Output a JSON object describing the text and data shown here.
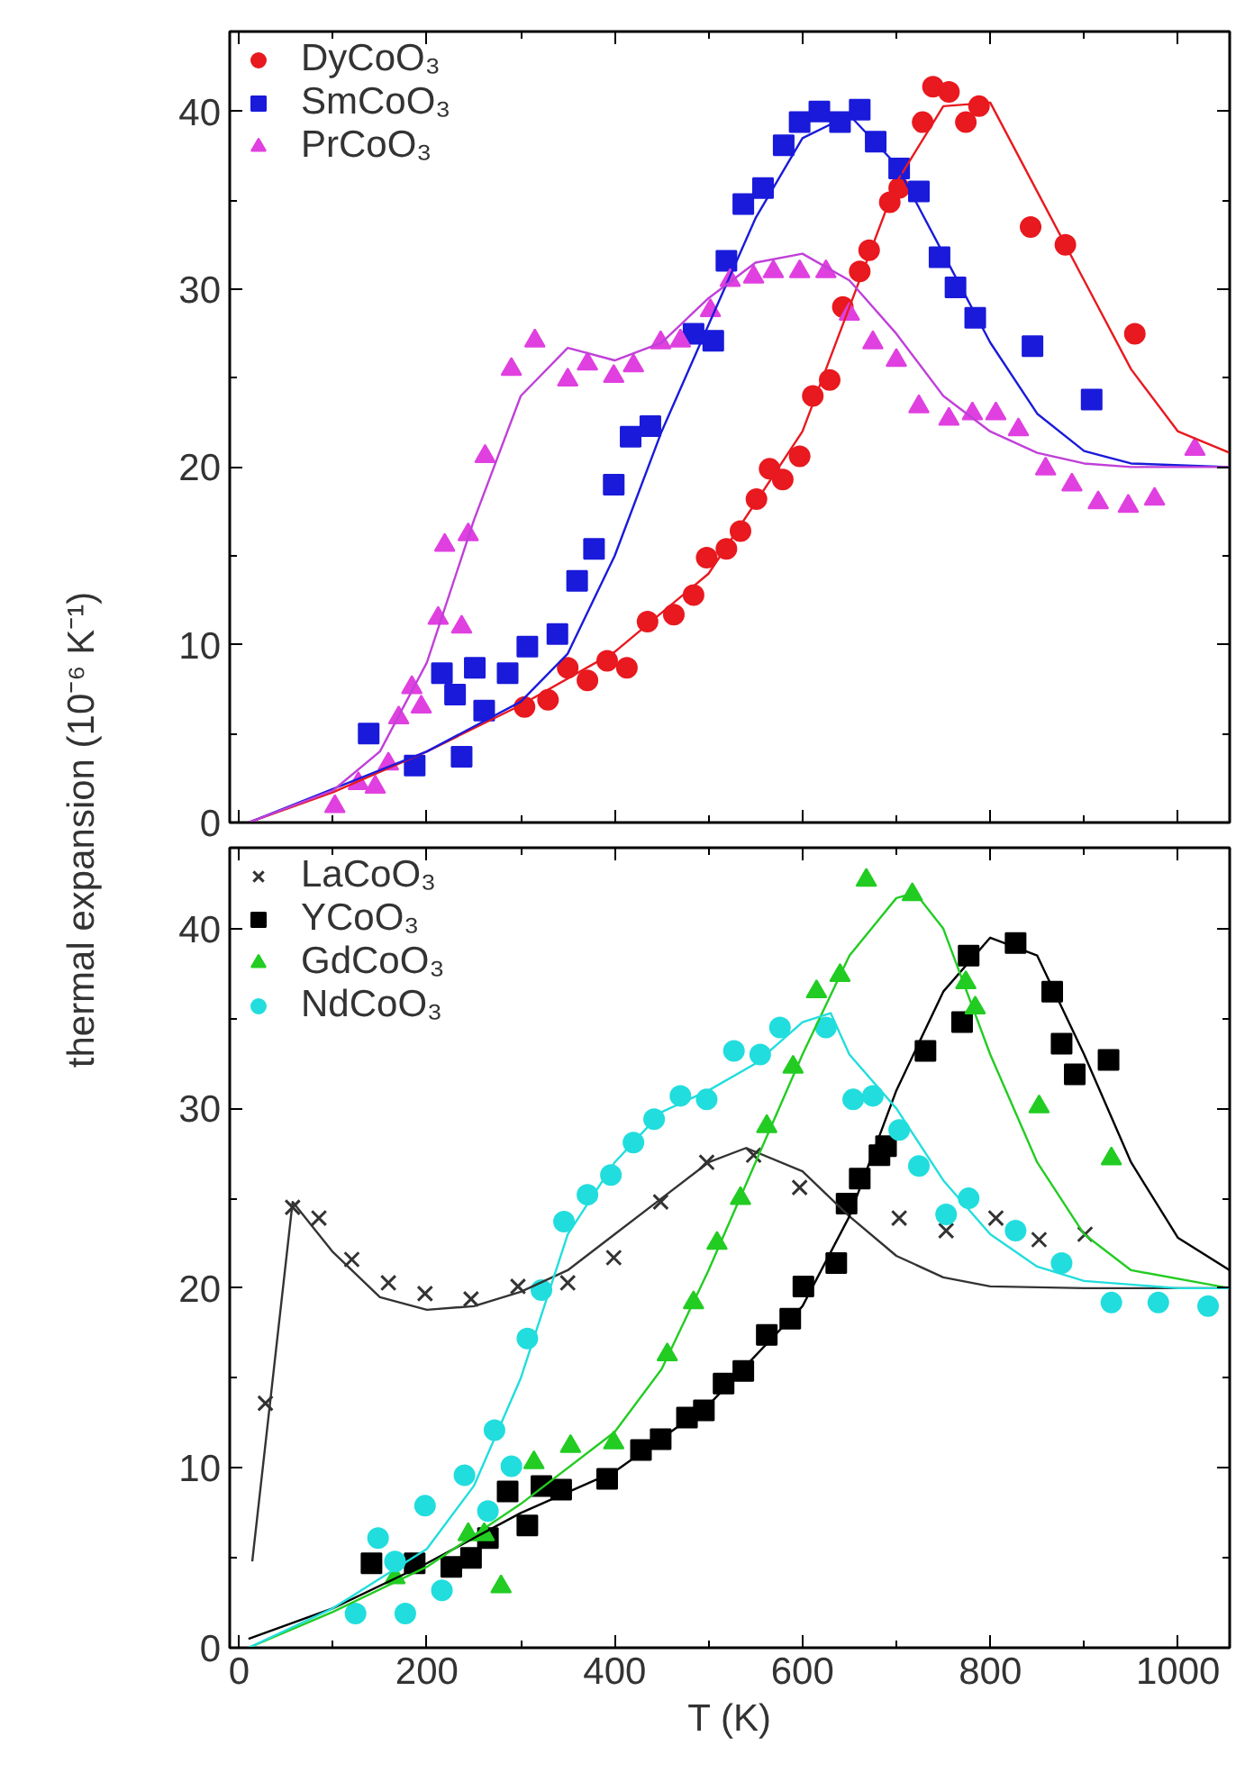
{
  "chart_data": [
    {
      "type": "scatter",
      "ylabel": "thermal expansion (10⁻⁶ K⁻¹)",
      "xlim": [
        -10,
        1055
      ],
      "ylim": [
        0,
        44.5
      ],
      "xticks": [
        0,
        200,
        400,
        600,
        800,
        1000
      ],
      "yticks": [
        0,
        10,
        20,
        30,
        40
      ],
      "tick_labels": "y",
      "grid": false,
      "legend": "top left",
      "series": [
        {
          "name": "DyCoO₃",
          "type": "scatter",
          "marker": "circle",
          "color": "#e8191f",
          "x": [
            304,
            329,
            350,
            371,
            392,
            413,
            435,
            463,
            484,
            498,
            519,
            534,
            551,
            565,
            579,
            597,
            611,
            629,
            643,
            661,
            671,
            693,
            703,
            728,
            739,
            756,
            774,
            788,
            843,
            880,
            954
          ],
          "values": [
            6.5,
            6.9,
            8.7,
            8.0,
            9.1,
            8.7,
            11.3,
            11.7,
            12.8,
            14.9,
            15.4,
            16.4,
            18.2,
            19.9,
            19.3,
            20.6,
            24.0,
            24.9,
            29.0,
            31.0,
            32.2,
            34.9,
            35.7,
            39.4,
            41.4,
            41.1,
            39.4,
            40.3,
            33.5,
            32.5,
            27.5
          ]
        },
        {
          "name": "SmCoO₃",
          "type": "scatter",
          "marker": "square",
          "color": "#1a1adb",
          "x": [
            138,
            187,
            237,
            216,
            251,
            230,
            261,
            286,
            307,
            339,
            360,
            378,
            399,
            417,
            438,
            484,
            505,
            519,
            537,
            558,
            580,
            597,
            618,
            640,
            661,
            678,
            703,
            724,
            746,
            763,
            784,
            845,
            908
          ],
          "values": [
            5.0,
            3.2,
            3.7,
            8.4,
            8.7,
            7.2,
            6.3,
            8.4,
            9.9,
            10.6,
            13.6,
            15.4,
            19.0,
            21.7,
            22.3,
            27.5,
            27.1,
            31.6,
            34.8,
            35.7,
            38.1,
            39.4,
            40.0,
            39.4,
            40.1,
            38.3,
            36.8,
            35.5,
            31.8,
            30.1,
            28.4,
            26.8,
            23.8
          ]
        },
        {
          "name": "PrCoO₃",
          "type": "scatter",
          "marker": "triangle",
          "color": "#e040e0",
          "x": [
            102,
            127,
            145,
            159,
            170,
            184,
            194,
            212,
            237,
            219,
            244,
            262,
            290,
            315,
            350,
            371,
            399,
            420,
            449,
            470,
            502,
            523,
            548,
            569,
            597,
            625,
            650,
            675,
            700,
            724,
            756,
            781,
            806,
            830,
            859,
            887,
            915,
            947,
            975,
            1018
          ],
          "values": [
            0.9,
            2.2,
            2.0,
            3.3,
            5.9,
            7.6,
            6.5,
            11.5,
            11.0,
            15.6,
            16.2,
            20.6,
            25.5,
            27.1,
            24.9,
            25.8,
            25.1,
            25.7,
            27.0,
            27.1,
            28.8,
            30.5,
            30.7,
            31.0,
            31.0,
            31.0,
            28.6,
            27.0,
            26.0,
            23.4,
            22.7,
            23.0,
            23.0,
            22.1,
            19.9,
            19.0,
            18.0,
            17.8,
            18.2,
            21.0
          ]
        },
        {
          "type": "line",
          "color": "#e8191f",
          "x": [
            10,
            100,
            200,
            300,
            400,
            500,
            600,
            650,
            700,
            750,
            800,
            850,
            900,
            950,
            1000,
            1055
          ],
          "values": [
            0,
            1.7,
            4.0,
            6.6,
            9.6,
            14,
            22,
            29,
            36,
            40.3,
            40.5,
            35.5,
            30.5,
            25.5,
            22,
            20.8
          ]
        },
        {
          "type": "line",
          "color": "#1a1adb",
          "x": [
            10,
            200,
            300,
            350,
            400,
            450,
            500,
            550,
            600,
            650,
            700,
            750,
            800,
            850,
            900,
            950,
            1055
          ],
          "values": [
            0,
            4,
            6.8,
            9.5,
            15,
            22,
            28,
            34,
            38.5,
            39.8,
            37,
            32,
            27,
            23,
            20.9,
            20.2,
            20
          ]
        },
        {
          "type": "line",
          "color": "#c040d8",
          "x": [
            10,
            100,
            150,
            200,
            250,
            300,
            350,
            400,
            450,
            500,
            550,
            600,
            650,
            700,
            750,
            800,
            850,
            900,
            950,
            1055
          ],
          "values": [
            0,
            1.8,
            4,
            9,
            17,
            24,
            26.7,
            26,
            27,
            29.5,
            31.5,
            32,
            30.5,
            27.5,
            24,
            22,
            20.8,
            20.2,
            20,
            20
          ]
        }
      ]
    },
    {
      "type": "scatter",
      "xlabel": "T (K)",
      "xlim": [
        -10,
        1055
      ],
      "ylim": [
        0,
        44.5
      ],
      "xticks": [
        0,
        200,
        400,
        600,
        800,
        1000
      ],
      "yticks": [
        0,
        10,
        20,
        30,
        40
      ],
      "grid": false,
      "legend": "top left",
      "series": [
        {
          "name": "LaCoO₃",
          "type": "scatter",
          "marker": "cross",
          "color": "#333333",
          "x": [
            28,
            57,
            85,
            120,
            159,
            198,
            247,
            297,
            350,
            399,
            449,
            498,
            548,
            597,
            703,
            753,
            806,
            852,
            901
          ],
          "values": [
            13.6,
            24.5,
            23.9,
            21.6,
            20.3,
            19.7,
            19.4,
            20.1,
            20.3,
            21.7,
            24.8,
            27.0,
            27.4,
            25.6,
            23.9,
            23.2,
            23.9,
            22.7,
            23.0
          ]
        },
        {
          "name": "YCoO₃",
          "type": "scatter",
          "marker": "square",
          "color": "#000000",
          "x": [
            141,
            187,
            226,
            247,
            265,
            307,
            286,
            322,
            343,
            392,
            428,
            449,
            477,
            495,
            516,
            537,
            562,
            587,
            601,
            636,
            647,
            661,
            682,
            689,
            731,
            770,
            777,
            827,
            866,
            876,
            890,
            926
          ],
          "values": [
            4.7,
            4.7,
            4.5,
            5.0,
            6.1,
            6.8,
            8.7,
            9.0,
            8.8,
            9.4,
            11.0,
            11.6,
            12.8,
            13.2,
            14.7,
            15.4,
            17.4,
            18.3,
            20.1,
            21.4,
            24.7,
            26.1,
            27.4,
            27.9,
            33.2,
            34.8,
            38.5,
            39.2,
            36.5,
            33.6,
            31.9,
            32.7
          ]
        },
        {
          "name": "GdCoO₃",
          "type": "scatter",
          "marker": "triangle",
          "color": "#22cc22",
          "x": [
            166,
            279,
            244,
            261,
            314,
            353,
            399,
            456,
            484,
            509,
            534,
            562,
            590,
            615,
            640,
            668,
            717,
            774,
            784,
            852,
            929
          ],
          "values": [
            3.9,
            3.4,
            6.3,
            6.3,
            10.3,
            11.2,
            11.4,
            16.3,
            19.2,
            22.5,
            25.0,
            29.0,
            32.3,
            36.5,
            37.4,
            42.7,
            41.9,
            37.0,
            35.6,
            30.1,
            27.2
          ]
        },
        {
          "name": "NdCoO₃",
          "type": "scatter",
          "marker": "circle",
          "color": "#22dddd",
          "x": [
            124,
            148,
            177,
            166,
            198,
            216,
            240,
            265,
            272,
            290,
            307,
            322,
            346,
            371,
            396,
            420,
            442,
            470,
            498,
            527,
            555,
            576,
            625,
            654,
            675,
            703,
            724,
            753,
            777,
            827,
            876,
            929,
            979,
            1032
          ],
          "values": [
            1.9,
            6.1,
            1.9,
            4.8,
            7.9,
            3.2,
            9.6,
            7.6,
            12.1,
            10.1,
            17.2,
            19.9,
            23.7,
            25.2,
            26.3,
            28.1,
            29.4,
            30.7,
            30.5,
            33.2,
            33.0,
            34.5,
            34.5,
            30.5,
            30.7,
            28.8,
            26.8,
            24.1,
            25.0,
            23.2,
            21.4,
            19.2,
            19.2,
            19.0
          ]
        },
        {
          "type": "line",
          "color": "#333333",
          "x": [
            14,
            57,
            100,
            150,
            200,
            250,
            300,
            350,
            400,
            450,
            500,
            540,
            600,
            650,
            700,
            750,
            800,
            900,
            1055
          ],
          "values": [
            4.8,
            24.8,
            22,
            19.5,
            18.8,
            19,
            19.8,
            21,
            23,
            25,
            27,
            27.8,
            26.5,
            24,
            21.8,
            20.6,
            20.1,
            20,
            20
          ]
        },
        {
          "type": "line",
          "color": "#000000",
          "x": [
            10,
            100,
            200,
            300,
            400,
            500,
            600,
            650,
            700,
            750,
            800,
            850,
            900,
            950,
            1000,
            1055
          ],
          "values": [
            0.5,
            2.2,
            4.7,
            7.5,
            9.8,
            13.5,
            19,
            24,
            31,
            36.5,
            39.5,
            38.5,
            33,
            27,
            22.8,
            21
          ]
        },
        {
          "type": "line",
          "color": "#22cc22",
          "x": [
            10,
            100,
            200,
            300,
            400,
            450,
            500,
            550,
            600,
            650,
            700,
            720,
            750,
            800,
            850,
            900,
            950,
            1055
          ],
          "values": [
            0,
            2,
            4.5,
            8,
            12,
            15.5,
            21,
            27,
            33,
            38.5,
            41.7,
            42,
            40,
            33,
            27,
            23,
            21,
            20
          ]
        },
        {
          "type": "line",
          "color": "#22dddd",
          "x": [
            10,
            100,
            200,
            250,
            300,
            350,
            400,
            450,
            500,
            550,
            600,
            630,
            650,
            700,
            750,
            800,
            850,
            900,
            1000,
            1055
          ],
          "values": [
            0,
            2.2,
            5.5,
            9,
            15,
            23,
            27,
            29.8,
            31,
            32.5,
            34.8,
            35.3,
            33,
            30,
            26,
            23,
            21.2,
            20.4,
            20,
            20
          ]
        }
      ]
    }
  ]
}
